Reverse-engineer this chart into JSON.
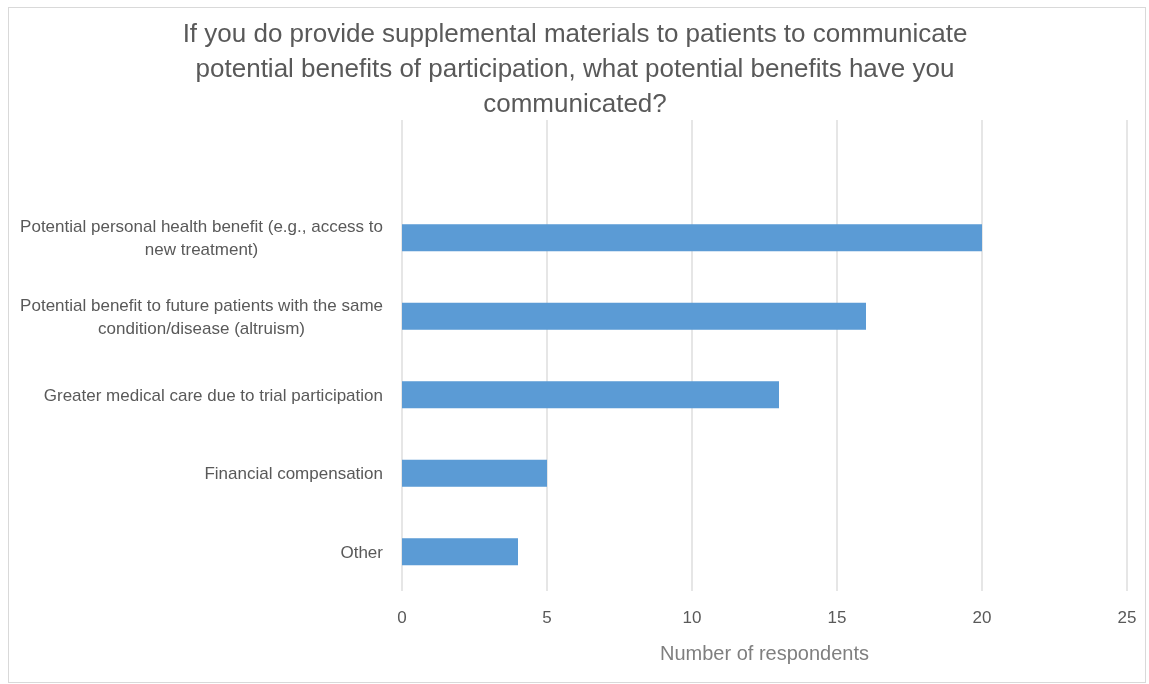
{
  "chart_data": {
    "type": "bar",
    "orientation": "horizontal",
    "title": "If you do provide supplemental materials to patients to communicate potential benefits of participation, what potential benefits have you communicated?",
    "xlabel": "Number of respondents",
    "categories": [
      null,
      "Potential personal health benefit (e.g., access to new treatment)",
      "Potential benefit to future patients with the same condition/disease (altruism)",
      "Greater medical care due to trial participation",
      "Financial compensation",
      "Other"
    ],
    "values": [
      null,
      20,
      16,
      13,
      5,
      4
    ],
    "color": "#5b9bd5",
    "xlim": [
      0,
      25
    ],
    "xticks": [
      0,
      5,
      10,
      15,
      20,
      25
    ],
    "grid": "x"
  }
}
